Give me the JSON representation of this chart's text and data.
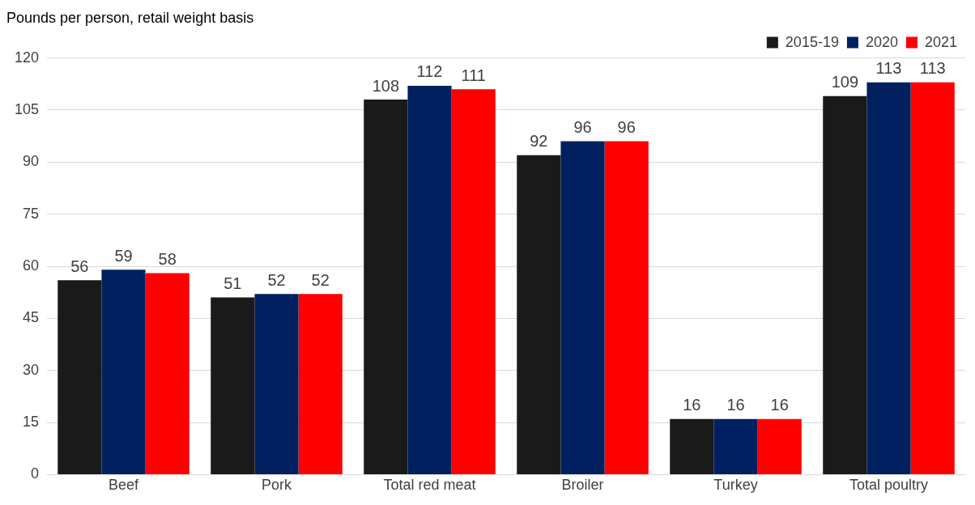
{
  "chart_data": {
    "type": "bar",
    "title": "Pounds per person, retail weight basis",
    "categories": [
      "Beef",
      "Pork",
      "Total red meat",
      "Broiler",
      "Turkey",
      "Total poultry"
    ],
    "series": [
      {
        "name": "2015-19",
        "color": "#1a1a1a",
        "values": [
          56,
          51,
          108,
          92,
          16,
          109
        ]
      },
      {
        "name": "2020",
        "color": "#002060",
        "values": [
          59,
          52,
          112,
          96,
          16,
          113
        ]
      },
      {
        "name": "2021",
        "color": "#ff0000",
        "values": [
          58,
          52,
          111,
          96,
          16,
          113
        ]
      }
    ],
    "ylim": [
      0,
      120
    ],
    "yticks": [
      0,
      15,
      30,
      45,
      60,
      75,
      90,
      105,
      120
    ],
    "grid": "y",
    "legend": "top right",
    "data_labels": true
  }
}
